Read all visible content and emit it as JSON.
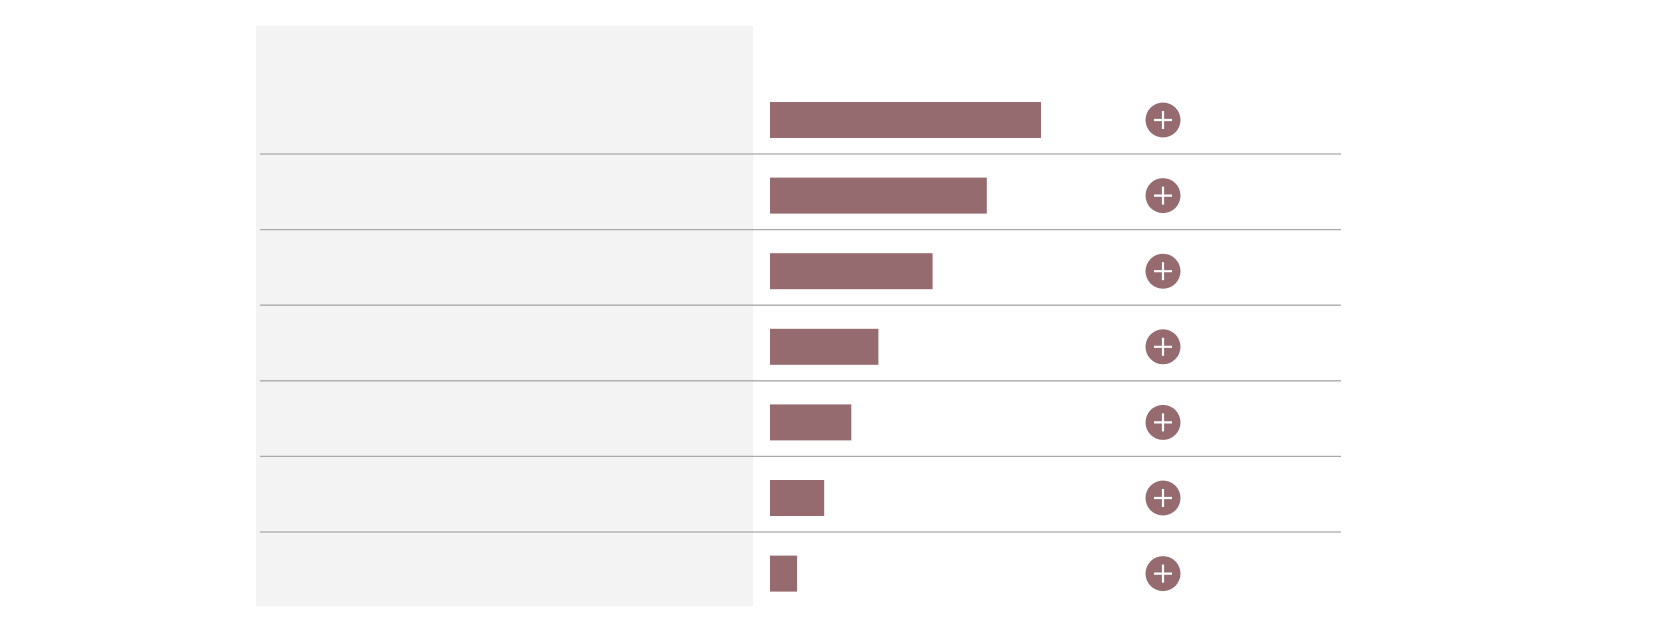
{
  "rows": [
    {
      "value": 10
    },
    {
      "value": 8
    },
    {
      "value": 6
    },
    {
      "value": 4
    },
    {
      "value": 3
    },
    {
      "value": 2
    },
    {
      "value": 1
    }
  ],
  "xlim": [
    0,
    10
  ],
  "color": "#966b6f"
}
